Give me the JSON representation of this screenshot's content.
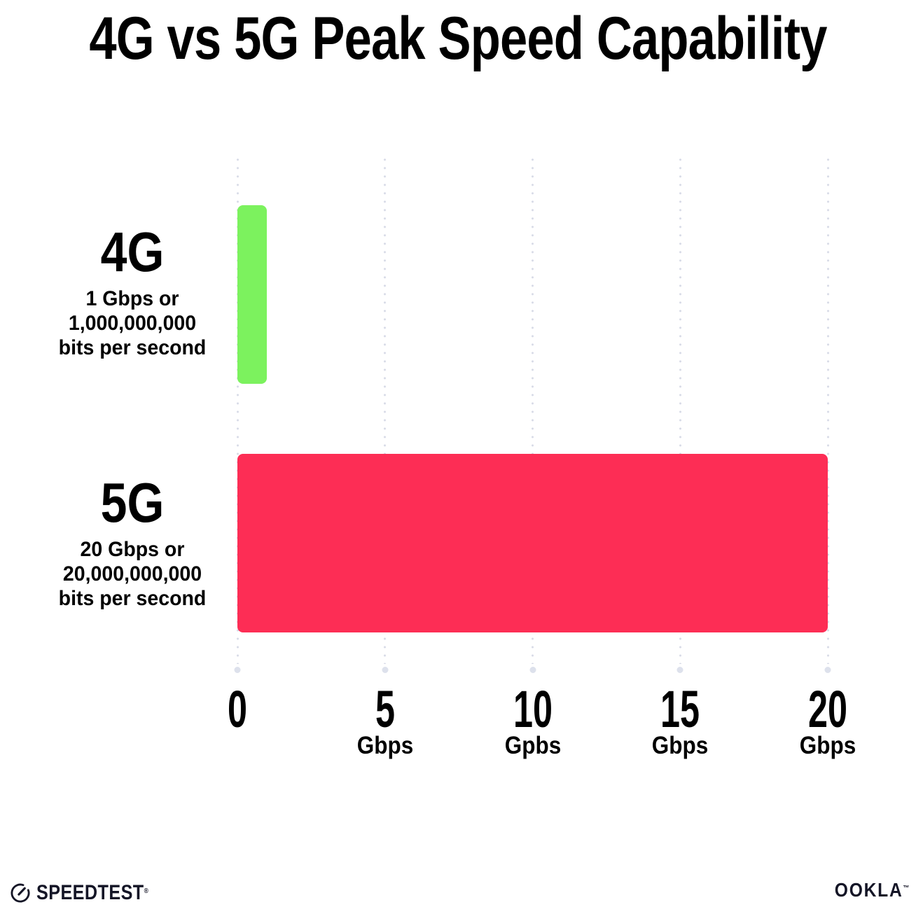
{
  "title": "4G vs 5G Peak Speed Capability",
  "chart_data": {
    "type": "bar",
    "orientation": "horizontal",
    "title": "4G vs 5G Peak Speed Capability",
    "categories": [
      "4G",
      "5G"
    ],
    "values": [
      1,
      20
    ],
    "value_unit": "Gbps",
    "category_sublabels": [
      [
        "1 Gbps or",
        "1,000,000,000",
        "bits per second"
      ],
      [
        "20 Gbps or",
        "20,000,000,000",
        "bits per second"
      ]
    ],
    "bar_colors": [
      "#7CF25E",
      "#FD2D55"
    ],
    "xlabel": "",
    "ylabel": "",
    "xlim": [
      0,
      20
    ],
    "x_ticks": [
      {
        "value": 0,
        "label": "0",
        "unit": ""
      },
      {
        "value": 5,
        "label": "5",
        "unit": "Gbps"
      },
      {
        "value": 10,
        "label": "10",
        "unit": "Gpbs"
      },
      {
        "value": 15,
        "label": "15",
        "unit": "Gbps"
      },
      {
        "value": 20,
        "label": "20",
        "unit": "Gbps"
      }
    ],
    "grid": "dotted-vertical-gridlines",
    "legend": "none"
  },
  "footer": {
    "left_logo": "SPEEDTEST",
    "left_mark": "®",
    "right_logo": "OOKLA",
    "right_mark": "™"
  },
  "colors": {
    "background": "#FFFFFF",
    "text": "#000000",
    "bar_4g": "#7CF25E",
    "bar_5g": "#FD2D55",
    "grid_dot": "#D8DBE7",
    "axis_end_dot": "#DDE1EC",
    "logo": "#141526"
  }
}
